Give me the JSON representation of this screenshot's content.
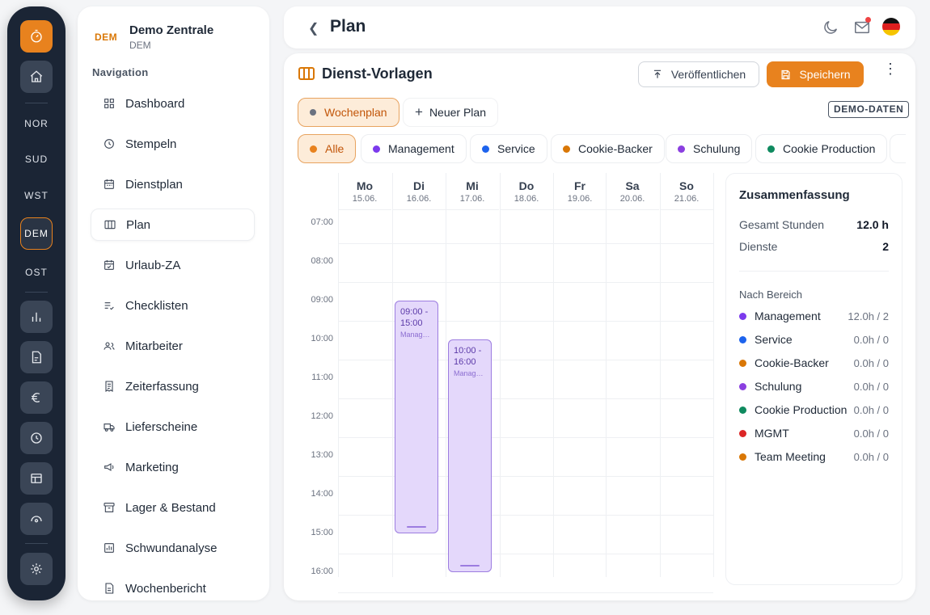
{
  "rail": {
    "codes": [
      "NOR",
      "SUD",
      "WST",
      "DEM",
      "OST"
    ],
    "active_code": "DEM"
  },
  "org": {
    "badge": "DEM",
    "name": "Demo Zentrale",
    "code": "DEM"
  },
  "nav": {
    "heading": "Navigation",
    "items": [
      {
        "label": "Dashboard",
        "icon": "grid-icon"
      },
      {
        "label": "Stempeln",
        "icon": "clock-icon"
      },
      {
        "label": "Dienstplan",
        "icon": "calendar-icon"
      },
      {
        "label": "Plan",
        "icon": "columns-icon",
        "active": true
      },
      {
        "label": "Urlaub-ZA",
        "icon": "calendar-check-icon"
      },
      {
        "label": "Checklisten",
        "icon": "list-check-icon"
      },
      {
        "label": "Mitarbeiter",
        "icon": "users-icon"
      },
      {
        "label": "Zeiterfassung",
        "icon": "receipt-icon"
      },
      {
        "label": "Lieferscheine",
        "icon": "truck-icon"
      },
      {
        "label": "Marketing",
        "icon": "megaphone-icon"
      },
      {
        "label": "Lager & Bestand",
        "icon": "archive-icon"
      },
      {
        "label": "Schwundanalyse",
        "icon": "chart-icon"
      },
      {
        "label": "Wochenbericht",
        "icon": "document-icon"
      }
    ]
  },
  "header": {
    "title": "Plan"
  },
  "card": {
    "title": "Dienst-Vorlagen",
    "publish_label": "Veröffentlichen",
    "save_label": "Speichern",
    "demo_badge": "DEMO-DATEN",
    "accent": "#e8821e"
  },
  "plans": {
    "selected": "Wochenplan",
    "new_label": "Neuer Plan"
  },
  "filters": [
    {
      "label": "Alle",
      "color": "#e8821e",
      "selected": true
    },
    {
      "label": "Management",
      "color": "#7c3aed"
    },
    {
      "label": "Service",
      "color": "#1d63ed"
    },
    {
      "label": "Cookie-Backer",
      "color": "#d97706"
    },
    {
      "label": "Schulung",
      "color": "#8b3fe0"
    },
    {
      "label": "Cookie Production",
      "color": "#0f8a5f"
    }
  ],
  "calendar": {
    "days": [
      {
        "day": "Mo",
        "date": "15.06."
      },
      {
        "day": "Di",
        "date": "16.06."
      },
      {
        "day": "Mi",
        "date": "17.06."
      },
      {
        "day": "Do",
        "date": "18.06."
      },
      {
        "day": "Fr",
        "date": "19.06."
      },
      {
        "day": "Sa",
        "date": "20.06."
      },
      {
        "day": "So",
        "date": "21.06."
      }
    ],
    "times": [
      "07:00",
      "08:00",
      "09:00",
      "10:00",
      "11:00",
      "12:00",
      "13:00",
      "14:00",
      "15:00",
      "16:00"
    ],
    "events": [
      {
        "day": "Di",
        "start": "09:00",
        "end": "15:00",
        "time_label": "09:00 - 15:00",
        "name": "Management"
      },
      {
        "day": "Mi",
        "start": "10:00",
        "end": "16:00",
        "time_label": "10:00 - 16:00",
        "name": "Management"
      }
    ]
  },
  "summary": {
    "title": "Zusammenfassung",
    "total_hours_label": "Gesamt Stunden",
    "total_hours": "12.0 h",
    "shifts_label": "Dienste",
    "shifts": "2",
    "by_area_label": "Nach Bereich",
    "areas": [
      {
        "name": "Management",
        "value": "12.0h / 2",
        "color": "#7c3aed"
      },
      {
        "name": "Service",
        "value": "0.0h / 0",
        "color": "#1d63ed"
      },
      {
        "name": "Cookie-Backer",
        "value": "0.0h / 0",
        "color": "#d97706"
      },
      {
        "name": "Schulung",
        "value": "0.0h / 0",
        "color": "#8b3fe0"
      },
      {
        "name": "Cookie Production",
        "value": "0.0h / 0",
        "color": "#0f8a5f"
      },
      {
        "name": "MGMT",
        "value": "0.0h / 0",
        "color": "#dc2626"
      },
      {
        "name": "Team Meeting",
        "value": "0.0h / 0",
        "color": "#d97706"
      }
    ]
  }
}
